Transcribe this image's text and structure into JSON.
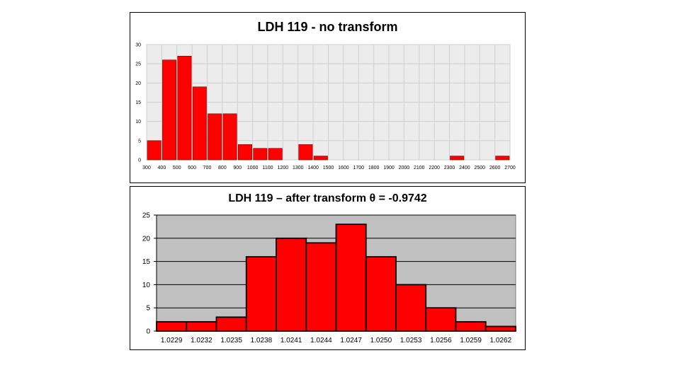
{
  "chart_data": [
    {
      "type": "bar",
      "title": "LDH 119 - no transform",
      "xlabel": "",
      "ylabel": "",
      "x_ticks": [
        "300",
        "400",
        "500",
        "600",
        "700",
        "800",
        "900",
        "1000",
        "1100",
        "1200",
        "1300",
        "1400",
        "1500",
        "1600",
        "1700",
        "1800",
        "1900",
        "2000",
        "2100",
        "2200",
        "2300",
        "2400",
        "2500",
        "2600",
        "2700"
      ],
      "bin_width": 100,
      "bins_start": [
        300,
        400,
        500,
        600,
        700,
        800,
        900,
        1000,
        1100,
        1200,
        1300,
        1400,
        1500,
        1600,
        1700,
        1800,
        1900,
        2000,
        2100,
        2200,
        2300,
        2400,
        2500,
        2600
      ],
      "values": [
        5,
        26,
        27,
        19,
        12,
        12,
        4,
        3,
        3,
        0,
        4,
        1,
        0,
        0,
        0,
        0,
        0,
        0,
        0,
        0,
        1,
        0,
        0,
        1
      ],
      "ylim": [
        0,
        30
      ],
      "y_ticks": [
        0,
        5,
        10,
        15,
        20,
        25,
        30
      ],
      "grid": true,
      "colors": {
        "bar": "#ff0000",
        "plot_bg": "#ececec",
        "grid": "#cfcfcf"
      }
    },
    {
      "type": "bar",
      "title": "LDH 119 – after transform  θ = -0.9742",
      "xlabel": "",
      "ylabel": "",
      "categories": [
        "1.0229",
        "1.0232",
        "1.0235",
        "1.0238",
        "1.0241",
        "1.0244",
        "1.0247",
        "1.0250",
        "1.0253",
        "1.0256",
        "1.0259",
        "1.0262"
      ],
      "values": [
        2,
        2,
        3,
        16,
        20,
        19,
        23,
        16,
        10,
        5,
        2,
        1
      ],
      "ylim": [
        0,
        25
      ],
      "y_ticks": [
        0,
        5,
        10,
        15,
        20,
        25
      ],
      "grid": true,
      "colors": {
        "bar": "#ff0000",
        "plot_bg": "#c0c0c0",
        "grid": "#000000"
      }
    }
  ]
}
